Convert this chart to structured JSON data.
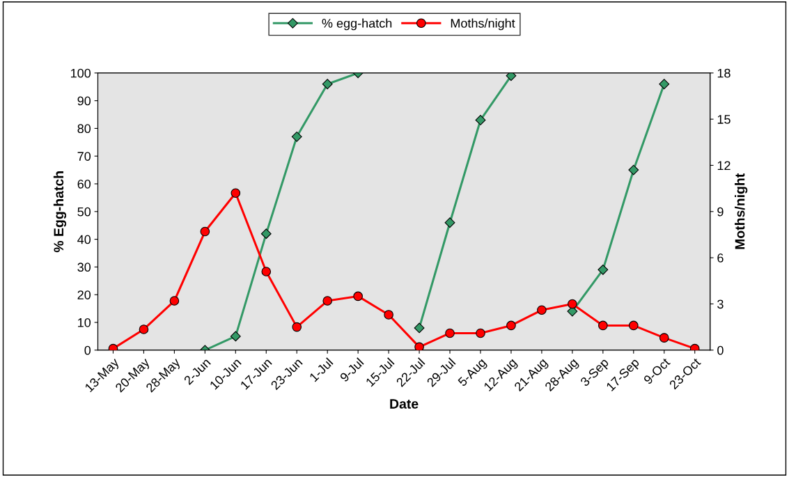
{
  "chart_data": {
    "type": "line",
    "xlabel": "Date",
    "ylabel": "% Egg-hatch",
    "y2label": "Moths/night",
    "categories": [
      "13-May",
      "20-May",
      "28-May",
      "2-Jun",
      "10-Jun",
      "17-Jun",
      "23-Jun",
      "1-Jul",
      "9-Jul",
      "15-Jul",
      "22-Jul",
      "29-Jul",
      "5-Aug",
      "12-Aug",
      "21-Aug",
      "28-Aug",
      "3-Sep",
      "17-Sep",
      "9-Oct",
      "23-Oct"
    ],
    "series": [
      {
        "name": "% egg-hatch",
        "color": "#339966",
        "marker": "diamond",
        "values": [
          null,
          null,
          null,
          0,
          5,
          42,
          77,
          96,
          100,
          null,
          8,
          46,
          83,
          99,
          null,
          14,
          29,
          65,
          96,
          null
        ]
      },
      {
        "name": "Moths/night",
        "color": "#ff0000",
        "marker": "circle",
        "axis": "y2",
        "values": [
          0.1,
          1.35,
          3.2,
          7.7,
          10.2,
          5.1,
          1.5,
          3.2,
          3.5,
          2.3,
          0.2,
          1.1,
          1.1,
          1.6,
          2.6,
          3.0,
          1.6,
          1.6,
          0.8,
          0.1
        ]
      }
    ],
    "ylim": [
      0,
      100
    ],
    "yticks": [
      0,
      10,
      20,
      30,
      40,
      50,
      60,
      70,
      80,
      90,
      100
    ],
    "y2lim": [
      0,
      18
    ],
    "y2ticks": [
      0,
      3,
      6,
      9,
      12,
      15,
      18
    ],
    "grid": false,
    "legend": "top",
    "line_style": "solid"
  }
}
